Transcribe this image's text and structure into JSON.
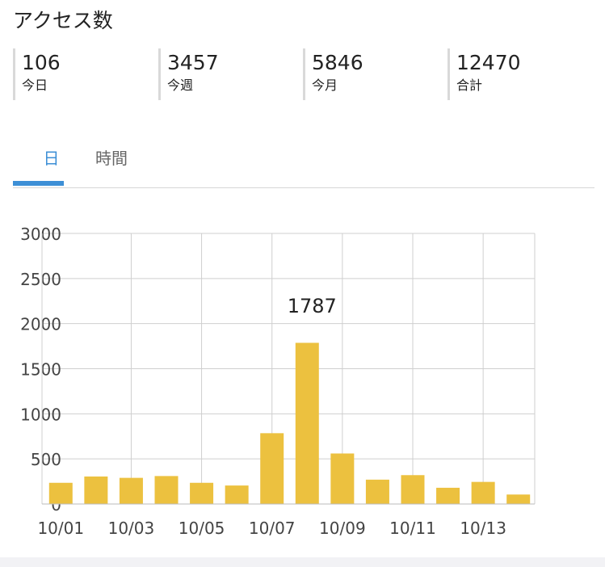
{
  "page": {
    "title": "アクセス数"
  },
  "stats": [
    {
      "value": "106",
      "label": "今日"
    },
    {
      "value": "3457",
      "label": "今週"
    },
    {
      "value": "5846",
      "label": "今月"
    },
    {
      "value": "12470",
      "label": "合計"
    }
  ],
  "tabs": [
    {
      "label": "日",
      "active": true
    },
    {
      "label": "時間",
      "active": false
    }
  ],
  "colors": {
    "bar": "#ECC13F",
    "accent": "#3D8FD6",
    "grid": "#CFCFCF"
  },
  "chart_data": {
    "type": "bar",
    "categories": [
      "10/01",
      "10/02",
      "10/03",
      "10/04",
      "10/05",
      "10/06",
      "10/07",
      "10/08",
      "10/09",
      "10/10",
      "10/11",
      "10/12",
      "10/13",
      "10/14"
    ],
    "x_tick_labels": [
      "10/01",
      "10/03",
      "10/05",
      "10/07",
      "10/09",
      "10/11",
      "10/13"
    ],
    "values": [
      235,
      305,
      290,
      310,
      235,
      205,
      785,
      1787,
      560,
      270,
      320,
      180,
      245,
      105
    ],
    "ylim": [
      0,
      3000
    ],
    "y_ticks": [
      0,
      500,
      1000,
      1500,
      2000,
      2500,
      3000
    ],
    "data_labels": [
      {
        "category": "10/08",
        "text": "1787"
      }
    ],
    "grid": true,
    "legend": false
  }
}
